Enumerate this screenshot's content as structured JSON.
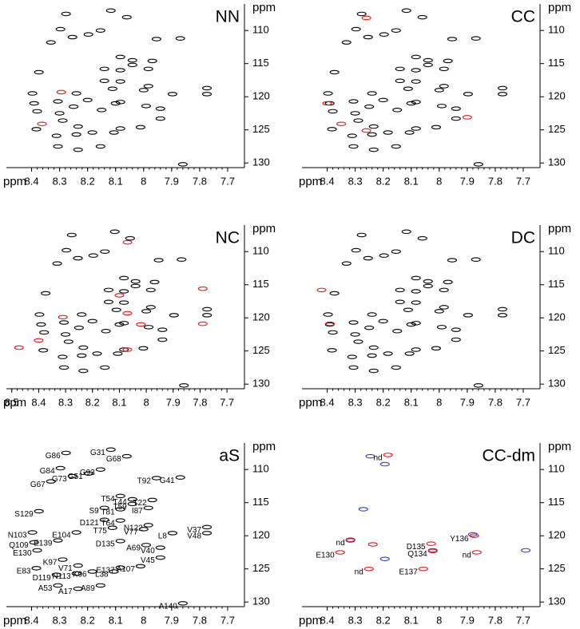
{
  "chart_data": [
    {
      "type": "scatter",
      "title": "NN",
      "xlabel": "ppm",
      "ylabel": "ppm",
      "xlim": [
        8.49,
        7.64
      ],
      "ylim": [
        130.7,
        106.0
      ],
      "xticks": [
        8.4,
        8.3,
        8.2,
        8.1,
        8.0,
        7.9,
        7.8,
        7.7
      ],
      "yticks": [
        110,
        115,
        120,
        125,
        130
      ],
      "series": [
        {
          "color": "#000000",
          "x": [
            8.277,
            8.117,
            8.06,
            8.297,
            8.154,
            8.197,
            8.254,
            8.331,
            7.954,
            7.869,
            8.083,
            8.04,
            7.969,
            8.04,
            7.983,
            8.14,
            8.083,
            8.374,
            8.14,
            8.083,
            7.983,
            8.111,
            7.774,
            8.24,
            8.0,
            8.397,
            7.774,
            7.897,
            8.306,
            8.391,
            8.083,
            7.991,
            7.94,
            8.38,
            7.94,
            8.289,
            8.234,
            8.011,
            8.383,
            8.083,
            8.106,
            8.183,
            8.24,
            8.311,
            8.306,
            8.234,
            8.154,
            7.86,
            8.2,
            8.25,
            8.15,
            8.3,
            8.1
          ],
          "values": [
            107.5,
            107.0,
            108.0,
            109.8,
            110.0,
            110.6,
            111.0,
            111.8,
            111.3,
            111.2,
            114.0,
            114.5,
            114.6,
            115.2,
            115.8,
            115.8,
            116.0,
            116.3,
            117.6,
            117.7,
            118.4,
            118.8,
            118.7,
            119.5,
            119.0,
            119.5,
            119.6,
            119.6,
            120.7,
            121.0,
            120.8,
            121.4,
            121.8,
            122.2,
            123.3,
            123.6,
            124.5,
            124.6,
            124.9,
            124.8,
            125.4,
            125.4,
            125.7,
            125.9,
            127.5,
            128.0,
            127.5,
            130.2,
            120.5,
            121.5,
            122.0,
            122.5,
            121.0
          ]
        },
        {
          "color": "#e0191b",
          "x": [
            8.294,
            8.363
          ],
          "values": [
            119.3,
            124.1
          ]
        }
      ]
    },
    {
      "type": "scatter",
      "title": "CC",
      "xlabel": "ppm",
      "ylabel": "ppm",
      "xlim": [
        8.49,
        7.64
      ],
      "ylim": [
        130.7,
        106.0
      ],
      "xticks": [
        8.4,
        8.3,
        8.2,
        8.1,
        8.0,
        7.9,
        7.8,
        7.7
      ],
      "yticks": [
        110,
        115,
        120,
        125,
        130
      ],
      "series": [
        {
          "color": "#000000",
          "x": [
            8.277,
            8.117,
            8.06,
            8.297,
            8.154,
            8.197,
            8.254,
            8.331,
            7.954,
            7.869,
            8.083,
            8.04,
            7.969,
            8.04,
            7.983,
            8.14,
            8.083,
            8.374,
            8.14,
            8.083,
            7.983,
            8.111,
            7.774,
            8.24,
            8.0,
            8.397,
            7.774,
            7.897,
            8.306,
            8.391,
            8.083,
            7.991,
            7.94,
            8.38,
            7.94,
            8.289,
            8.234,
            8.011,
            8.383,
            8.083,
            8.106,
            8.183,
            8.24,
            8.311,
            8.306,
            8.234,
            8.154,
            7.86,
            8.2,
            8.25,
            8.15,
            8.3,
            8.1
          ],
          "values": [
            107.5,
            107.0,
            108.0,
            109.8,
            110.0,
            110.6,
            111.0,
            111.8,
            111.3,
            111.2,
            114.0,
            114.5,
            114.6,
            115.2,
            115.8,
            115.8,
            116.0,
            116.3,
            117.6,
            117.7,
            118.4,
            118.8,
            118.7,
            119.5,
            119.0,
            119.5,
            119.6,
            119.6,
            120.7,
            121.0,
            120.8,
            121.4,
            121.8,
            122.2,
            123.3,
            123.6,
            124.5,
            124.6,
            124.9,
            124.8,
            125.4,
            125.4,
            125.7,
            125.9,
            127.5,
            128.0,
            127.5,
            130.2,
            120.5,
            121.5,
            122.0,
            122.5,
            121.0
          ]
        },
        {
          "color": "#e0191b",
          "x": [
            8.26,
            8.4,
            8.35,
            8.26,
            7.9
          ],
          "values": [
            108.1,
            121.0,
            124.1,
            125.1,
            123.1
          ]
        }
      ]
    },
    {
      "type": "scatter",
      "title": "NC",
      "xlabel": "ppm",
      "ylabel": "ppm",
      "xlim": [
        8.52,
        7.635
      ],
      "ylim": [
        130.7,
        106.0
      ],
      "xticks": [
        8.5,
        8.4,
        8.3,
        8.2,
        8.1,
        8.0,
        7.9,
        7.8,
        7.7
      ],
      "yticks": [
        110,
        115,
        120,
        125,
        130
      ],
      "series": [
        {
          "color": "#000000",
          "x": [
            8.277,
            8.117,
            8.06,
            8.297,
            8.154,
            8.197,
            8.254,
            8.331,
            7.954,
            7.869,
            8.083,
            8.04,
            7.969,
            8.04,
            7.983,
            8.14,
            8.083,
            8.374,
            8.14,
            8.083,
            7.983,
            8.111,
            7.774,
            8.24,
            8.0,
            8.397,
            7.774,
            7.897,
            8.306,
            8.391,
            8.083,
            7.991,
            7.94,
            8.38,
            7.94,
            8.289,
            8.234,
            8.011,
            8.383,
            8.083,
            8.106,
            8.183,
            8.24,
            8.311,
            8.306,
            8.234,
            8.154,
            7.86,
            8.2,
            8.25,
            8.15,
            8.3,
            8.1
          ],
          "values": [
            107.5,
            107.0,
            108.0,
            109.8,
            110.0,
            110.6,
            111.0,
            111.8,
            111.3,
            111.2,
            114.0,
            114.5,
            114.6,
            115.2,
            115.8,
            115.8,
            116.0,
            116.3,
            117.6,
            117.7,
            118.4,
            118.8,
            118.7,
            119.5,
            119.0,
            119.5,
            119.6,
            119.6,
            120.7,
            121.0,
            120.8,
            121.4,
            121.8,
            122.2,
            123.3,
            123.6,
            124.5,
            124.6,
            124.9,
            124.8,
            125.4,
            125.4,
            125.7,
            125.9,
            127.5,
            128.0,
            127.5,
            130.2,
            120.5,
            121.5,
            122.0,
            122.5,
            121.0
          ]
        },
        {
          "color": "#e0191b",
          "x": [
            8.473,
            8.4,
            8.31,
            8.07,
            8.1,
            8.07,
            8.02,
            8.07,
            7.79,
            7.79
          ],
          "values": [
            124.5,
            123.4,
            119.9,
            108.6,
            116.6,
            119.3,
            121.0,
            124.8,
            115.6,
            120.9
          ]
        }
      ]
    },
    {
      "type": "scatter",
      "title": "DC",
      "xlabel": "ppm",
      "ylabel": "ppm",
      "xlim": [
        8.49,
        7.64
      ],
      "ylim": [
        130.7,
        106.0
      ],
      "xticks": [
        8.4,
        8.3,
        8.2,
        8.1,
        8.0,
        7.9,
        7.8,
        7.7
      ],
      "yticks": [
        110,
        115,
        120,
        125,
        130
      ],
      "series": [
        {
          "color": "#000000",
          "x": [
            8.277,
            8.117,
            8.06,
            8.297,
            8.154,
            8.197,
            8.254,
            8.331,
            7.954,
            7.869,
            8.083,
            8.04,
            7.969,
            8.04,
            7.983,
            8.14,
            8.083,
            8.374,
            8.14,
            8.083,
            7.983,
            8.111,
            7.774,
            8.24,
            8.0,
            8.397,
            7.774,
            7.897,
            8.306,
            8.391,
            8.083,
            7.991,
            7.94,
            8.38,
            7.94,
            8.289,
            8.234,
            8.011,
            8.383,
            8.083,
            8.106,
            8.183,
            8.24,
            8.311,
            8.306,
            8.234,
            8.154,
            7.86,
            8.2,
            8.25,
            8.15,
            8.3,
            8.1
          ],
          "values": [
            107.5,
            107.0,
            108.0,
            109.8,
            110.0,
            110.6,
            111.0,
            111.8,
            111.3,
            111.2,
            114.0,
            114.5,
            114.6,
            115.2,
            115.8,
            115.8,
            116.0,
            116.3,
            117.6,
            117.7,
            118.4,
            118.8,
            118.7,
            119.5,
            119.0,
            119.5,
            119.6,
            119.6,
            120.7,
            121.0,
            120.8,
            121.4,
            121.8,
            122.2,
            123.3,
            123.6,
            124.5,
            124.6,
            124.9,
            124.8,
            125.4,
            125.4,
            125.7,
            125.9,
            127.5,
            128.0,
            127.5,
            130.2,
            120.5,
            121.5,
            122.0,
            122.5,
            121.0
          ]
        },
        {
          "color": "#e0191b",
          "x": [
            8.42,
            8.39
          ],
          "values": [
            115.8,
            120.9
          ]
        }
      ]
    },
    {
      "type": "scatter",
      "title": "aS",
      "xlabel": "ppm",
      "ylabel": "ppm",
      "xlim": [
        8.49,
        7.64
      ],
      "ylim": [
        130.7,
        106.0
      ],
      "xticks": [
        8.4,
        8.3,
        8.2,
        8.1,
        8.0,
        7.9,
        7.8,
        7.7
      ],
      "yticks": [
        110,
        115,
        120,
        125,
        130
      ],
      "series": [
        {
          "color": "#000000",
          "x": [
            8.277,
            8.117,
            8.06,
            8.297,
            8.154,
            8.197,
            8.254,
            8.331,
            7.954,
            7.869,
            8.083,
            8.04,
            7.969,
            8.04,
            7.983,
            8.14,
            8.083,
            8.374,
            8.14,
            8.083,
            7.983,
            8.111,
            7.774,
            8.24,
            8.0,
            8.397,
            7.774,
            7.897,
            8.306,
            8.391,
            8.083,
            7.991,
            7.94,
            8.38,
            7.94,
            8.289,
            8.234,
            8.011,
            8.383,
            8.083,
            8.106,
            8.183,
            8.24,
            8.311,
            8.306,
            8.234,
            8.154,
            7.86
          ],
          "values": [
            107.5,
            107.0,
            108.0,
            109.8,
            110.0,
            110.6,
            111.0,
            111.8,
            111.3,
            111.2,
            114.0,
            114.5,
            114.6,
            115.2,
            115.8,
            115.8,
            116.0,
            116.3,
            117.6,
            117.7,
            118.4,
            118.8,
            118.7,
            119.5,
            119.0,
            119.5,
            119.6,
            119.6,
            120.7,
            121.0,
            120.8,
            121.4,
            121.8,
            122.2,
            123.3,
            123.6,
            124.5,
            124.6,
            124.9,
            124.8,
            125.4,
            125.4,
            125.7,
            125.9,
            127.5,
            128.0,
            127.5,
            130.2
          ],
          "point_labels": [
            "G86",
            "G31",
            "G68",
            "G84",
            "G93",
            "G51",
            "G73",
            "G67",
            "T92",
            "G41",
            "T54",
            "T44",
            "T22",
            "T59",
            "I87",
            "S9",
            "T81",
            "S129",
            "D121",
            "T64",
            "N122",
            "T75",
            "V37",
            "E104",
            "V77",
            "N103",
            "V48",
            "L8",
            "E139",
            "Q109",
            "D135",
            "A69",
            "V40",
            "E130",
            "V45",
            "K97",
            "V71",
            "A107",
            "E83",
            "E137",
            "L38",
            "K96",
            "N113",
            "D119",
            "A53",
            "A17",
            "A89",
            "A140"
          ]
        }
      ]
    },
    {
      "type": "scatter",
      "title": "CC-dm",
      "xlabel": "ppm",
      "ylabel": "ppm",
      "xlim": [
        8.49,
        7.64
      ],
      "ylim": [
        130.7,
        106.0
      ],
      "xticks": [
        8.4,
        8.3,
        8.2,
        8.1,
        8.0,
        7.9,
        7.8,
        7.7
      ],
      "yticks": [
        110,
        115,
        120,
        125,
        130
      ],
      "series": [
        {
          "color": "#3b3bd6",
          "x": [
            8.246,
            8.194,
            8.271,
            8.317,
            8.194,
            8.023,
            7.88,
            7.691
          ],
          "values": [
            108.0,
            109.2,
            116.0,
            120.7,
            123.5,
            122.2,
            119.8,
            122.2
          ]
        },
        {
          "color": "#e0191b",
          "x": [
            8.183,
            8.317,
            8.237,
            8.251,
            8.057,
            8.029,
            8.023,
            7.875,
            7.866,
            8.354
          ],
          "values": [
            107.8,
            120.6,
            121.3,
            125.0,
            125.0,
            121.2,
            122.3,
            120.0,
            122.5,
            122.5
          ],
          "point_labels": [
            "nd",
            "nd",
            null,
            "nd",
            "E137",
            "D135",
            "Q134",
            "Y136",
            "nd",
            "E130"
          ]
        }
      ]
    }
  ]
}
